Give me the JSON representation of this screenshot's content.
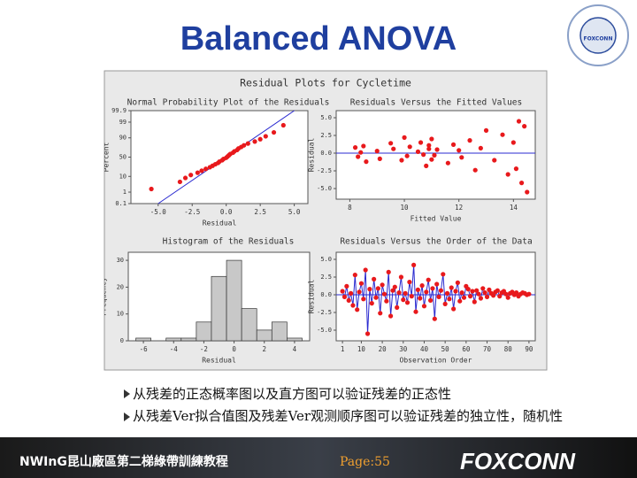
{
  "title": "Balanced ANOVA",
  "logo": {
    "text": "FOXCONN"
  },
  "figure_title": "Residual Plots for Cycletime",
  "chart_data": [
    {
      "type": "probability",
      "title": "Normal Probability Plot of the Residuals",
      "x_label": "Residual",
      "y_label": "Percent",
      "x": [
        -5.5,
        -3.4,
        -3.0,
        -2.6,
        -2.1,
        -1.8,
        -1.5,
        -1.2,
        -1.0,
        -0.8,
        -0.6,
        -0.5,
        -0.3,
        -0.2,
        0.0,
        0.1,
        0.2,
        0.3,
        0.5,
        0.6,
        0.8,
        0.9,
        1.1,
        1.3,
        1.6,
        2.1,
        2.5,
        2.9,
        3.5,
        4.2
      ],
      "values": [
        1.7,
        5,
        8.3,
        11.7,
        15,
        18.3,
        21.7,
        25,
        28.3,
        31.7,
        35,
        38.3,
        41.7,
        45,
        48.3,
        51.7,
        55,
        58.3,
        61.7,
        65,
        68.3,
        71.7,
        75,
        78.3,
        81.7,
        85,
        88.3,
        91.7,
        95,
        98.3
      ],
      "fit_line": {
        "x": [
          -5,
          5
        ],
        "values": [
          0.1,
          99.9
        ]
      },
      "color": "#e8191c",
      "line_color": "#2a2ad0",
      "xlim": [
        -7,
        6
      ],
      "xticks": [
        {
          "value": -5,
          "label": "-5.0"
        },
        -2.5,
        {
          "value": 0,
          "label": "0.0"
        },
        2.5,
        {
          "value": 5,
          "label": "5.0"
        }
      ],
      "ylim": [
        0.1,
        99.9
      ],
      "yticks": [
        0.1,
        1,
        10,
        50,
        90,
        99,
        99.9
      ],
      "y_scale": "probability"
    },
    {
      "type": "scatter",
      "title": "Residuals Versus the Fitted Values",
      "x_label": "Fitted Value",
      "y_label": "Residual",
      "x": [
        8.2,
        8.3,
        8.5,
        8.6,
        9.0,
        9.1,
        9.5,
        9.6,
        9.9,
        10.0,
        10.1,
        10.2,
        10.5,
        10.6,
        10.8,
        10.9,
        10.9,
        11.0,
        11.0,
        11.1,
        11.2,
        11.6,
        11.8,
        12.0,
        12.1,
        12.4,
        12.6,
        12.8,
        13.0,
        13.3,
        13.6,
        13.8,
        14.0,
        14.1,
        14.2,
        14.3,
        14.4,
        14.5,
        8.4,
        10.7
      ],
      "values": [
        0.8,
        -0.5,
        1.0,
        -1.2,
        0.3,
        -0.8,
        1.4,
        0.6,
        -1.0,
        2.2,
        -0.4,
        0.9,
        0.2,
        1.5,
        -1.8,
        0.6,
        1.1,
        -0.9,
        2.0,
        -0.3,
        0.5,
        -1.4,
        1.2,
        0.4,
        -0.6,
        1.8,
        -2.4,
        0.7,
        3.2,
        -1.0,
        2.6,
        -3.0,
        1.5,
        -2.2,
        4.5,
        -4.2,
        3.8,
        -5.5,
        0.1,
        -0.2
      ],
      "reference_line": 0,
      "color": "#e8191c",
      "line_color": "#2a2ad0",
      "xlim": [
        7.5,
        14.8
      ],
      "xticks": [
        8,
        10,
        12,
        14
      ],
      "ylim": [
        -6.5,
        6
      ],
      "yticks": [
        {
          "value": 5,
          "label": "5.0"
        },
        2.5,
        {
          "value": 0,
          "label": "0.0"
        },
        -2.5,
        {
          "value": -5,
          "label": "-5.0"
        }
      ]
    },
    {
      "type": "histogram",
      "title": "Histogram of the Residuals",
      "x_label": "Residual",
      "y_label": "Frequency",
      "bins": [
        -6.5,
        -5.5,
        -4.5,
        -3.5,
        -2.5,
        -1.5,
        -0.5,
        0.5,
        1.5,
        2.5,
        3.5,
        4.5
      ],
      "values": [
        1,
        0,
        1,
        1,
        7,
        24,
        30,
        12,
        4,
        7,
        1
      ],
      "color": "#c8c8c8",
      "xlim": [
        -7,
        5
      ],
      "xticks": [
        -6,
        -4,
        -2,
        0,
        2,
        4
      ],
      "ylim": [
        0,
        33
      ],
      "yticks": [
        0,
        10,
        20,
        30
      ]
    },
    {
      "type": "line",
      "title": "Residuals Versus the Order of the Data",
      "x_label": "Observation Order",
      "y_label": "Residual",
      "x": [
        1,
        2,
        3,
        4,
        5,
        6,
        7,
        8,
        9,
        10,
        11,
        12,
        13,
        14,
        15,
        16,
        17,
        18,
        19,
        20,
        21,
        22,
        23,
        24,
        25,
        26,
        27,
        28,
        29,
        30,
        31,
        32,
        33,
        34,
        35,
        36,
        37,
        38,
        39,
        40,
        41,
        42,
        43,
        44,
        45,
        46,
        47,
        48,
        49,
        50,
        51,
        52,
        53,
        54,
        55,
        56,
        57,
        58,
        59,
        60,
        61,
        62,
        63,
        64,
        65,
        66,
        67,
        68,
        69,
        70,
        71,
        72,
        73,
        74,
        75,
        76,
        77,
        78,
        79,
        80,
        81,
        82,
        83,
        84,
        85,
        86,
        87,
        88,
        89,
        90
      ],
      "values": [
        0.5,
        -0.3,
        1.2,
        -0.8,
        0.2,
        -1.5,
        2.8,
        -2.1,
        0.4,
        1.6,
        -0.6,
        3.5,
        -5.5,
        0.8,
        -1.2,
        2.2,
        -0.4,
        0.9,
        -2.6,
        1.4,
        0.1,
        -0.9,
        3.2,
        -3.0,
        0.6,
        1.1,
        -1.8,
        0.3,
        2.5,
        -0.7,
        0.2,
        -1.1,
        1.8,
        -0.2,
        4.2,
        -2.4,
        0.7,
        -0.5,
        1.3,
        -1.6,
        0.4,
        2.1,
        -0.8,
        0.9,
        -3.4,
        1.5,
        -0.3,
        0.6,
        2.9,
        -1.3,
        0.2,
        -0.6,
        1.0,
        -2.0,
        0.5,
        1.7,
        -0.9,
        0.3,
        -0.4,
        1.2,
        0.8,
        -0.2,
        0.5,
        -1.0,
        0.6,
        0.1,
        -0.5,
        0.9,
        0.3,
        -0.3,
        0.7,
        0.2,
        -0.1,
        0.4,
        0.6,
        -0.2,
        0.3,
        0.5,
        0.1,
        -0.4,
        0.2,
        0.4,
        0.0,
        0.3,
        -0.2,
        0.1,
        0.3,
        0.2,
        0.0,
        0.1
      ],
      "reference_line": 0,
      "color": "#e8191c",
      "line_color": "#2a2ad0",
      "xlim": [
        -2,
        93
      ],
      "xticks": [
        1,
        10,
        20,
        30,
        40,
        50,
        60,
        70,
        80,
        90
      ],
      "ylim": [
        -6.5,
        6
      ],
      "yticks": [
        {
          "value": 5,
          "label": "5.0"
        },
        2.5,
        {
          "value": 0,
          "label": "0.0"
        },
        -2.5,
        {
          "value": -5,
          "label": "-5.0"
        }
      ]
    }
  ],
  "bullets": [
    "从残差的正态概率图以及直方图可以验证残差的正态性",
    "从残差Ver拟合值图及残差Ver观测顺序图可以验证残差的独立性，随机性"
  ],
  "footer": {
    "course": "NWInG昆山廠區第二梯綠帶訓練教程",
    "page": "Page:55",
    "brand": "FOXCONN"
  }
}
